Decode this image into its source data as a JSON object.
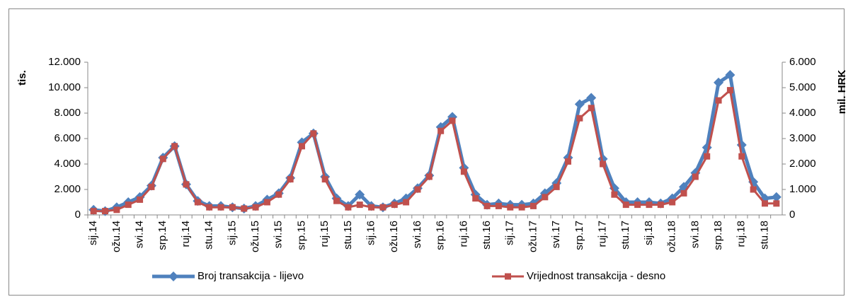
{
  "chart_data": {
    "type": "line",
    "categories": [
      "sij.14",
      null,
      "ožu.14",
      null,
      "svi.14",
      null,
      "srp.14",
      null,
      "ruj.14",
      null,
      "stu.14",
      null,
      "sij.15",
      null,
      "ožu.15",
      null,
      "svi.15",
      null,
      "srp.15",
      null,
      "ruj.15",
      null,
      "stu.15",
      null,
      "sij.16",
      null,
      "ožu.16",
      null,
      "svi.16",
      null,
      "srp.16",
      null,
      "ruj.16",
      null,
      "stu.16",
      null,
      "sij.17",
      null,
      "ožu.17",
      null,
      "svi.17",
      null,
      "srp.17",
      null,
      "ruj.17",
      null,
      "stu.17",
      null,
      "sij.18",
      null,
      "ožu.18",
      null,
      "svi.18",
      null,
      "srp.18",
      null,
      "ruj.18",
      null,
      "stu.18",
      null
    ],
    "ylabel": "tis.",
    "y2label": "mil. HRK",
    "ylim": [
      0,
      12000
    ],
    "yticks": [
      {
        "value": 0,
        "label": "0"
      },
      {
        "value": 2000,
        "label": "2.000"
      },
      {
        "value": 4000,
        "label": "4.000"
      },
      {
        "value": 6000,
        "label": "6.000"
      },
      {
        "value": 8000,
        "label": "8.000"
      },
      {
        "value": 10000,
        "label": "10.000"
      },
      {
        "value": 12000,
        "label": "12.000"
      }
    ],
    "y2lim": [
      0,
      6000
    ],
    "y2ticks": [
      {
        "value": 0,
        "label": "0"
      },
      {
        "value": 1000,
        "label": "1.000"
      },
      {
        "value": 2000,
        "label": "2.000"
      },
      {
        "value": 3000,
        "label": "3.000"
      },
      {
        "value": 4000,
        "label": "4.000"
      },
      {
        "value": 5000,
        "label": "5.000"
      },
      {
        "value": 6000,
        "label": "6.000"
      }
    ],
    "series": [
      {
        "name": "Broj transakcija - lijevo",
        "color": "#4f81bd",
        "marker": "diamond",
        "values": [
          400,
          300,
          600,
          1000,
          1400,
          2300,
          4500,
          5400,
          2400,
          1100,
          700,
          700,
          600,
          500,
          700,
          1200,
          1700,
          2900,
          5700,
          6400,
          3000,
          1300,
          700,
          1600,
          700,
          600,
          900,
          1300,
          2100,
          3100,
          6900,
          7700,
          3700,
          1600,
          800,
          900,
          800,
          800,
          900,
          1700,
          2500,
          4500,
          8700,
          9200,
          4400,
          2100,
          1000,
          1000,
          1000,
          900,
          1300,
          2200,
          3300,
          5300,
          10400,
          11000,
          5500,
          2600,
          1300,
          1400
        ]
      },
      {
        "name": "Vrijednost transakcija - desno",
        "color": "#c0504d",
        "marker": "square",
        "axis": "y2",
        "values": [
          150,
          150,
          200,
          400,
          600,
          1100,
          2200,
          2700,
          1200,
          500,
          300,
          300,
          300,
          250,
          300,
          500,
          800,
          1400,
          2700,
          3200,
          1400,
          550,
          300,
          400,
          300,
          300,
          400,
          500,
          1000,
          1500,
          3300,
          3700,
          1700,
          650,
          350,
          350,
          300,
          300,
          350,
          700,
          1100,
          2100,
          3800,
          4200,
          2000,
          800,
          400,
          400,
          400,
          400,
          500,
          850,
          1500,
          2300,
          4500,
          4900,
          2300,
          1000,
          450,
          450
        ]
      }
    ]
  }
}
